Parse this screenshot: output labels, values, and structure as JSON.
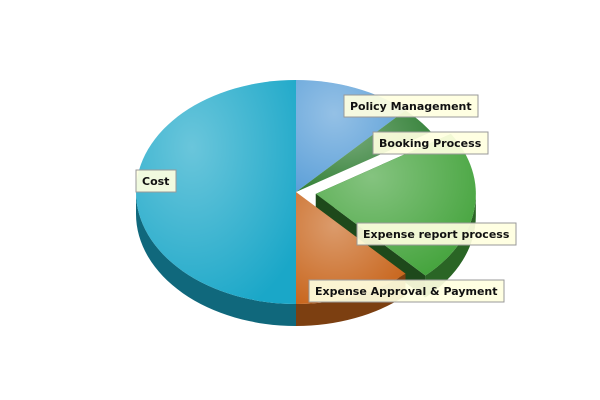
{
  "chart_data": {
    "type": "pie",
    "three_d": true,
    "exploded": "Expense report process",
    "title": "",
    "slices": [
      {
        "label": "Policy Management",
        "value": 12,
        "color": "#5b9fd8"
      },
      {
        "label": "Booking Process",
        "value": 4,
        "color": "#2e7d32"
      },
      {
        "label": "Expense report process",
        "value": 22,
        "color": "#43a33b"
      },
      {
        "label": "Expense Approval & Payment",
        "value": 12,
        "color": "#c8651c"
      },
      {
        "label": "Cost",
        "value": 50,
        "color": "#1aa7c8"
      }
    ]
  }
}
